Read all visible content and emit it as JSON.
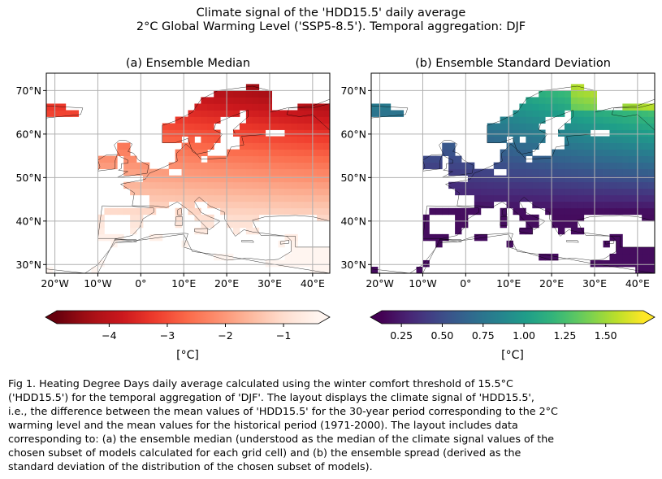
{
  "figure": {
    "title_line1": "Climate signal of the 'HDD15.5' daily average",
    "title_line2": "2°C Global Warming Level ('SSP5-8.5'). Temporal aggregation: DJF",
    "caption": "Fig 1. Heating Degree Days daily average calculated using the winter comfort threshold of 15.5°C\n('HDD15.5') for the temporal aggregation of 'DJF'. The layout displays the climate signal of 'HDD15.5',\ni.e., the difference between the mean values of 'HDD15.5' for the 30-year period corresponding to the 2°C\nwarming level and the mean values for the historical period (1971-2000). The layout includes data\ncorresponding to: (a) the ensemble median (understood as the median of the climate signal values of the\nchosen subset of models calculated for each grid cell) and (b) the ensemble spread (derived as the\nstandard deviation of the distribution of the chosen subset of models)."
  },
  "chart_data": [
    {
      "type": "heatmap",
      "title": "(a) Ensemble Median",
      "colormap": "Reds_r",
      "xlim": [
        -22,
        44
      ],
      "ylim": [
        28,
        74
      ],
      "x_ticks": [
        -20,
        -10,
        0,
        10,
        20,
        30,
        40
      ],
      "x_tick_labels": [
        "20°W",
        "10°W",
        "0°",
        "10°E",
        "20°E",
        "30°E",
        "40°E"
      ],
      "y_ticks": [
        30,
        40,
        50,
        60,
        70
      ],
      "y_tick_labels": [
        "30°N",
        "40°N",
        "50°N",
        "60°N",
        "70°N"
      ],
      "grid": true,
      "colorbar": {
        "range": [
          -4.9,
          -0.4
        ],
        "ticks": [
          -4,
          -3,
          -2,
          -1
        ],
        "tick_labels": [
          "−4",
          "−3",
          "−2",
          "−1"
        ],
        "label": "[°C]",
        "extend": "both",
        "under_color": "#67000d",
        "over_color": "#fff5f0"
      },
      "field_summary": "climate-signal values range from about -0.5 °C (southern Europe, Mediterranean) to about -4.5 °C (northern Scandinavia and north-western Russia)"
    },
    {
      "type": "heatmap",
      "title": "(b) Ensemble Standard Deviation",
      "colormap": "viridis",
      "xlim": [
        -22,
        44
      ],
      "ylim": [
        28,
        74
      ],
      "x_ticks": [
        -20,
        -10,
        0,
        10,
        20,
        30,
        40
      ],
      "x_tick_labels": [
        "20°W",
        "10°W",
        "0°",
        "10°E",
        "20°E",
        "30°E",
        "40°E"
      ],
      "y_ticks": [
        30,
        40,
        50,
        60,
        70
      ],
      "y_tick_labels": [
        "30°N",
        "40°N",
        "50°N",
        "60°N",
        "70°N"
      ],
      "grid": true,
      "colorbar": {
        "range": [
          0.13,
          1.73
        ],
        "ticks": [
          0.25,
          0.5,
          0.75,
          1.0,
          1.25,
          1.5
        ],
        "tick_labels": [
          "0.25",
          "0.50",
          "0.75",
          "1.00",
          "1.25",
          "1.50"
        ],
        "label": "[°C]",
        "extend": "both",
        "under_color": "#440154",
        "over_color": "#fde725"
      },
      "field_summary": "ensemble spread ranges from about 0.2 °C (southern Europe) to about 1.6 °C (northern Russia)"
    }
  ]
}
